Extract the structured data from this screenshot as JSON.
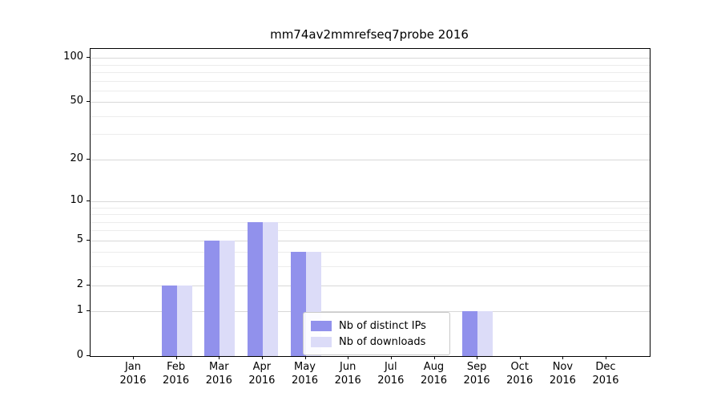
{
  "title": "mm74av2mmrefseq7probe 2016",
  "chart_data": {
    "type": "bar",
    "scale": "log1p",
    "title": "mm74av2mmrefseq7probe 2016",
    "categories": [
      "Jan 2016",
      "Feb 2016",
      "Mar 2016",
      "Apr 2016",
      "May 2016",
      "Jun 2016",
      "Jul 2016",
      "Aug 2016",
      "Sep 2016",
      "Oct 2016",
      "Nov 2016",
      "Dec 2016"
    ],
    "series": [
      {
        "name": "Nb of distinct IPs",
        "color": "#9191ec",
        "values": [
          0,
          2,
          5,
          7,
          4,
          0,
          0,
          0,
          1,
          0,
          0,
          0
        ]
      },
      {
        "name": "Nb of downloads",
        "color": "#dcdcf8",
        "values": [
          0,
          2,
          5,
          7,
          4,
          0,
          0,
          0,
          1,
          0,
          0,
          0
        ]
      }
    ],
    "yticks": [
      0,
      1,
      2,
      5,
      10,
      20,
      50,
      100
    ],
    "minor_gridlines": [
      3,
      4,
      6,
      7,
      8,
      9,
      30,
      40,
      60,
      70,
      80,
      90
    ],
    "ylim": [
      0,
      115
    ],
    "grid": "on",
    "legend_position": "lower center"
  }
}
